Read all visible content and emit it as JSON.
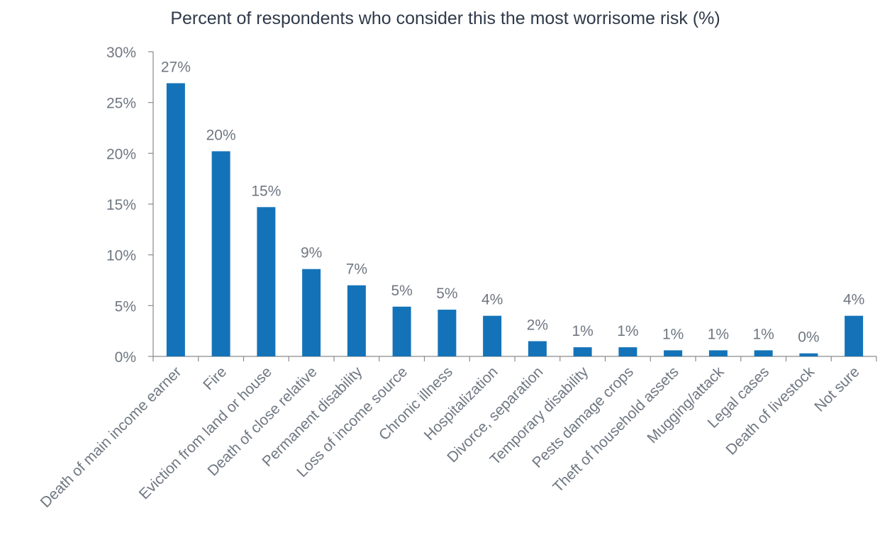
{
  "chart_data": {
    "type": "bar",
    "title": "Percent of respondents who consider this the most worrisome risk (%)",
    "xlabel": "",
    "ylabel": "",
    "ylim": [
      0,
      30
    ],
    "yticks": [
      0,
      5,
      10,
      15,
      20,
      25,
      30
    ],
    "ytick_labels": [
      "0%",
      "5%",
      "10%",
      "15%",
      "20%",
      "25%",
      "30%"
    ],
    "grid": false,
    "legend": "none",
    "bar_color": "#1473b8",
    "categories": [
      "Death of main income earner",
      "Fire",
      "Eviction from land or house",
      "Death of close relative",
      "Permanent disability",
      "Loss of income source",
      "Chronic illness",
      "Hospitalization",
      "Divorce, separation",
      "Temporary disability",
      "Pests damage crops",
      "Theft of household assets",
      "Mugging/attack",
      "Legal cases",
      "Death of livestock",
      "Not sure"
    ],
    "values": [
      26.9,
      20.2,
      14.7,
      8.6,
      7.0,
      4.9,
      4.6,
      4.0,
      1.5,
      0.9,
      0.9,
      0.6,
      0.6,
      0.6,
      0.3,
      4.0
    ],
    "data_labels": [
      "27%",
      "20%",
      "15%",
      "9%",
      "7%",
      "5%",
      "5%",
      "4%",
      "2%",
      "1%",
      "1%",
      "1%",
      "1%",
      "1%",
      "0%",
      "4%"
    ]
  }
}
